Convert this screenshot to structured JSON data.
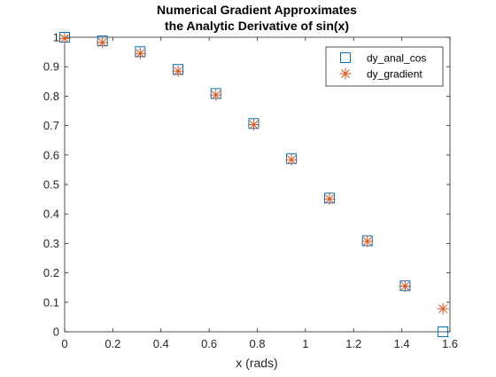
{
  "chart_data": {
    "type": "scatter",
    "title": [
      "Numerical Gradient Approximates",
      "the Analytic Derivative of sin(x)"
    ],
    "xlabel": "x (rads)",
    "ylabel": "",
    "xlim": [
      0,
      1.6
    ],
    "ylim": [
      0,
      1
    ],
    "xticks": [
      0,
      0.2,
      0.4,
      0.6,
      0.8,
      1,
      1.2,
      1.4,
      1.6
    ],
    "xtick_labels": [
      "0",
      "0.2",
      "0.4",
      "0.6",
      "0.8",
      "1",
      "1.2",
      "1.4",
      "1.6"
    ],
    "yticks": [
      0,
      0.1,
      0.2,
      0.3,
      0.4,
      0.5,
      0.6,
      0.7,
      0.8,
      0.9,
      1
    ],
    "ytick_labels": [
      "0",
      "0.1",
      "0.2",
      "0.3",
      "0.4",
      "0.5",
      "0.6",
      "0.7",
      "0.8",
      "0.9",
      "1"
    ],
    "grid": true,
    "legend_position": "top-right",
    "series": [
      {
        "name": "dy_anal_cos",
        "marker": "square",
        "color": "#0072BD",
        "x": [
          0,
          0.157,
          0.314,
          0.471,
          0.628,
          0.785,
          0.942,
          1.1,
          1.257,
          1.414,
          1.571
        ],
        "y": [
          1,
          0.988,
          0.951,
          0.891,
          0.809,
          0.707,
          0.588,
          0.454,
          0.309,
          0.156,
          0
        ]
      },
      {
        "name": "dy_gradient",
        "marker": "asterisk",
        "color": "#D95319",
        "x": [
          0,
          0.157,
          0.314,
          0.471,
          0.628,
          0.785,
          0.942,
          1.1,
          1.257,
          1.414,
          1.571
        ],
        "y": [
          0.996,
          0.982,
          0.945,
          0.885,
          0.804,
          0.703,
          0.584,
          0.451,
          0.307,
          0.155,
          0.078
        ]
      }
    ]
  }
}
